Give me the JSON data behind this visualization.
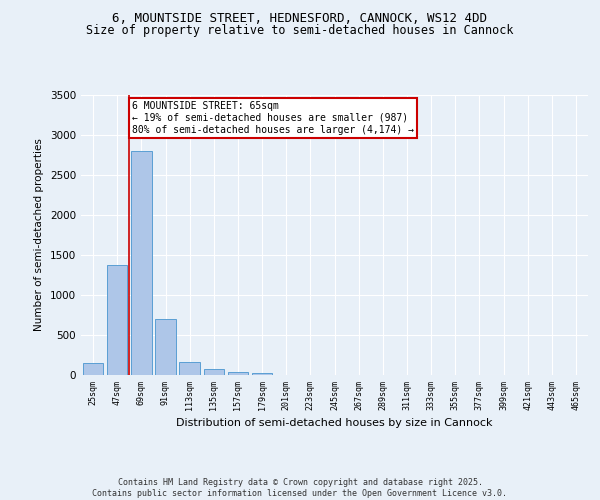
{
  "title1": "6, MOUNTSIDE STREET, HEDNESFORD, CANNOCK, WS12 4DD",
  "title2": "Size of property relative to semi-detached houses in Cannock",
  "xlabel": "Distribution of semi-detached houses by size in Cannock",
  "ylabel": "Number of semi-detached properties",
  "categories": [
    "25sqm",
    "47sqm",
    "69sqm",
    "91sqm",
    "113sqm",
    "135sqm",
    "157sqm",
    "179sqm",
    "201sqm",
    "223sqm",
    "245sqm",
    "267sqm",
    "289sqm",
    "311sqm",
    "333sqm",
    "355sqm",
    "377sqm",
    "399sqm",
    "421sqm",
    "443sqm",
    "465sqm"
  ],
  "values": [
    150,
    1380,
    2800,
    700,
    160,
    80,
    35,
    25,
    0,
    0,
    0,
    0,
    0,
    0,
    0,
    0,
    0,
    0,
    0,
    0,
    0
  ],
  "bar_color": "#aec6e8",
  "bar_edge_color": "#5a9fd4",
  "vline_x": 1.5,
  "vline_color": "#cc0000",
  "annotation_text": "6 MOUNTSIDE STREET: 65sqm\n← 19% of semi-detached houses are smaller (987)\n80% of semi-detached houses are larger (4,174) →",
  "annotation_box_color": "#ffffff",
  "annotation_box_edge": "#cc0000",
  "ylim": [
    0,
    3500
  ],
  "yticks": [
    0,
    500,
    1000,
    1500,
    2000,
    2500,
    3000,
    3500
  ],
  "bg_color": "#e8f0f8",
  "plot_bg_color": "#e8f0f8",
  "footer": "Contains HM Land Registry data © Crown copyright and database right 2025.\nContains public sector information licensed under the Open Government Licence v3.0.",
  "title_fontsize": 9,
  "subtitle_fontsize": 8.5
}
